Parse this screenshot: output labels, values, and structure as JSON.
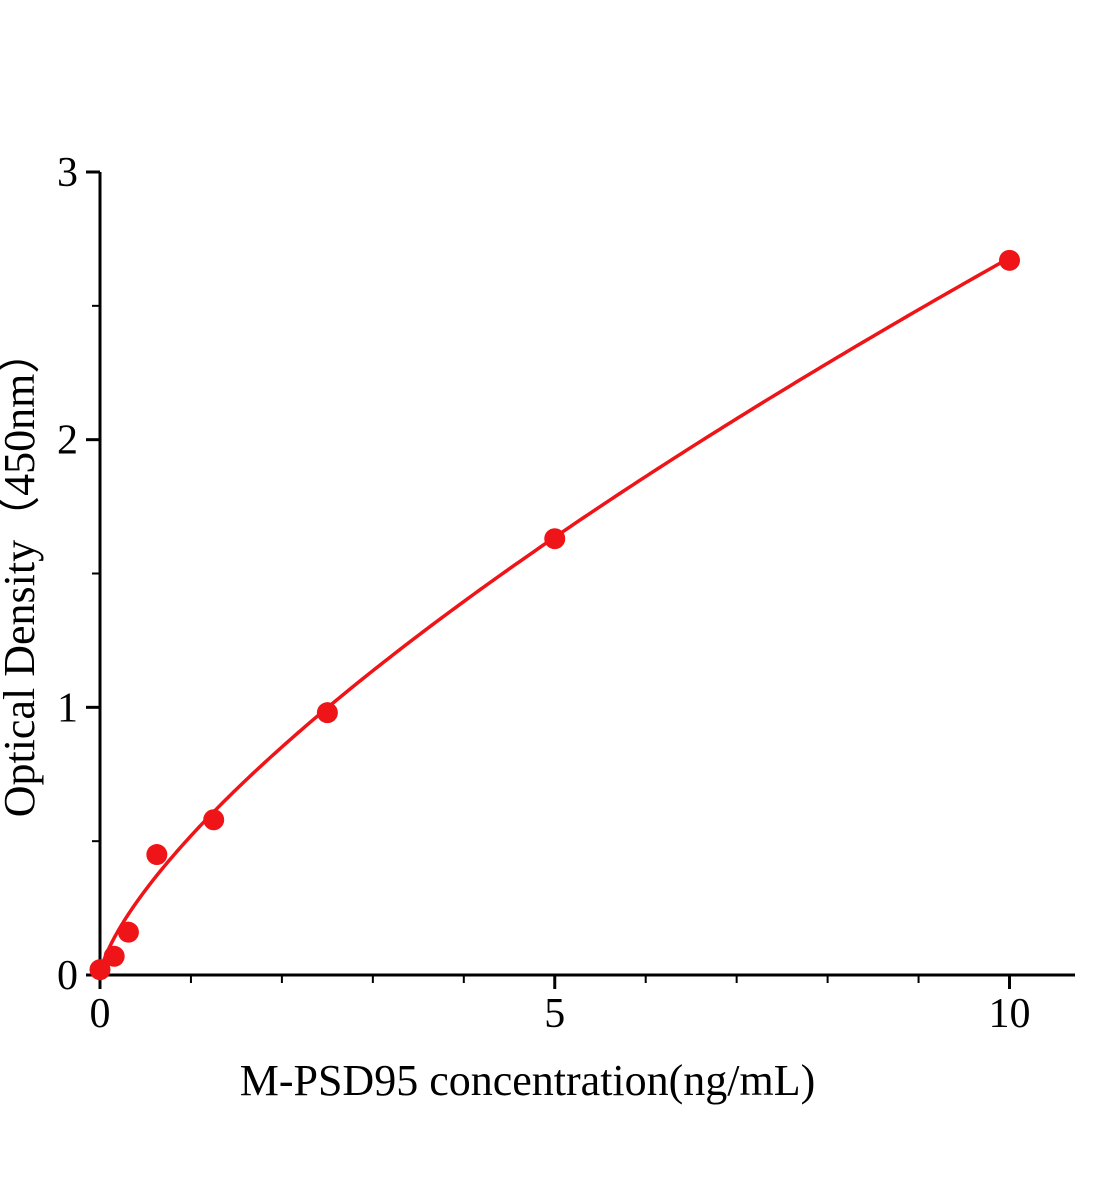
{
  "chart_data": {
    "type": "scatter",
    "title": "",
    "xlabel": "M-PSD95 concentration(ng/mL)",
    "ylabel": "Optical Density（450nm）",
    "xlim": [
      0,
      10.72
    ],
    "ylim": [
      0,
      3
    ],
    "x_ticks": [
      0,
      5,
      10
    ],
    "x_minor_ticks": [
      1,
      2,
      3,
      4,
      6,
      7,
      8,
      9
    ],
    "y_ticks": [
      0,
      1,
      2,
      3
    ],
    "y_minor_ticks": [
      0.5,
      1.5,
      2.5
    ],
    "grid": "off",
    "legend": "none",
    "points": [
      {
        "x": 0,
        "y": 0.02
      },
      {
        "x": 0.156,
        "y": 0.07
      },
      {
        "x": 0.3125,
        "y": 0.16
      },
      {
        "x": 0.625,
        "y": 0.45
      },
      {
        "x": 1.25,
        "y": 0.58
      },
      {
        "x": 2.5,
        "y": 0.98
      },
      {
        "x": 5,
        "y": 1.63
      },
      {
        "x": 10,
        "y": 2.67
      }
    ],
    "fit_curve": {
      "type": "power",
      "a": 0.52,
      "b": 0.712,
      "x_start": 0.0,
      "x_end": 10
    },
    "marker_color": "#ee1417",
    "line_color": "#ee1417",
    "axis_color": "#000000"
  }
}
